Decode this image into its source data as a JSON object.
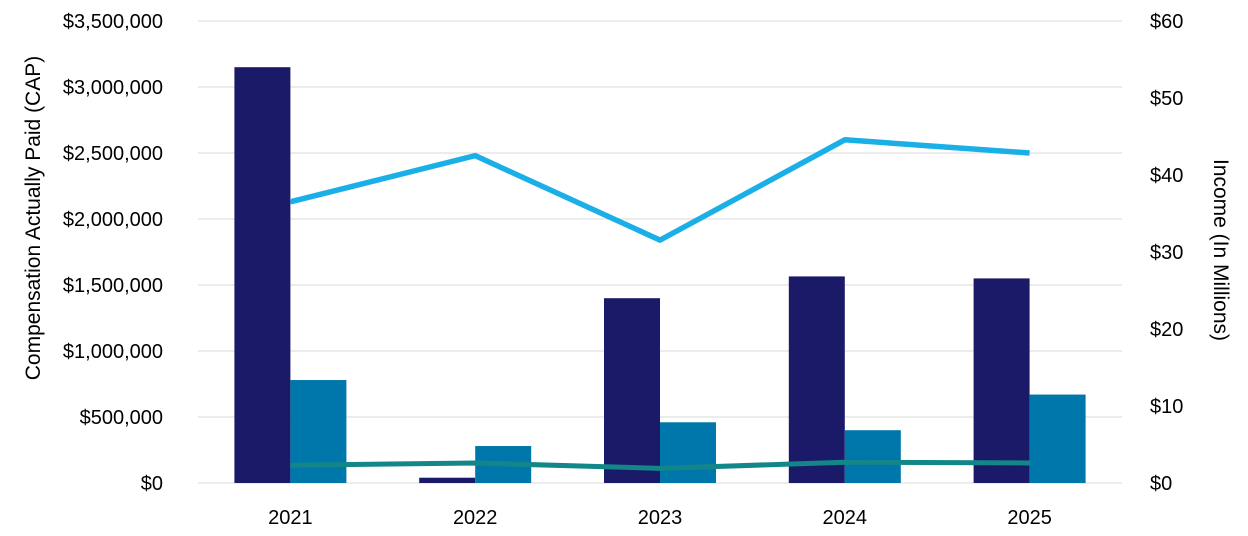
{
  "chart_data": {
    "type": "bar",
    "categories": [
      "2021",
      "2022",
      "2023",
      "2024",
      "2025"
    ],
    "title": "",
    "xlabel": "",
    "ylabel": "Compensation Actually Paid (CAP)",
    "y2label": "Income (In Millions)",
    "ylim": [
      0,
      3500000
    ],
    "y2lim": [
      0,
      60
    ],
    "y_ticks": [
      "$0",
      "$500,000",
      "$1,000,000",
      "$1,500,000",
      "$2,000,000",
      "$2,500,000",
      "$3,000,000",
      "$3,500,000"
    ],
    "y2_ticks": [
      "$0",
      "$10",
      "$20",
      "$30",
      "$40",
      "$50",
      "$60"
    ],
    "grid": true,
    "legend": "none",
    "series": [
      {
        "type": "bar",
        "axis": "left",
        "color": "#1b1a68",
        "values": [
          3150000,
          40000,
          1400000,
          1565000,
          1550000
        ]
      },
      {
        "type": "bar",
        "axis": "left",
        "color": "#0077aa",
        "values": [
          780000,
          280000,
          460000,
          400000,
          670000
        ]
      },
      {
        "type": "line",
        "axis": "left",
        "color": "#1aafe6",
        "values": [
          2130000,
          2480000,
          1840000,
          2600000,
          2500000
        ]
      },
      {
        "type": "line",
        "axis": "right",
        "color": "#13868a",
        "values": [
          2.3,
          2.6,
          1.9,
          2.7,
          2.6
        ]
      }
    ]
  }
}
